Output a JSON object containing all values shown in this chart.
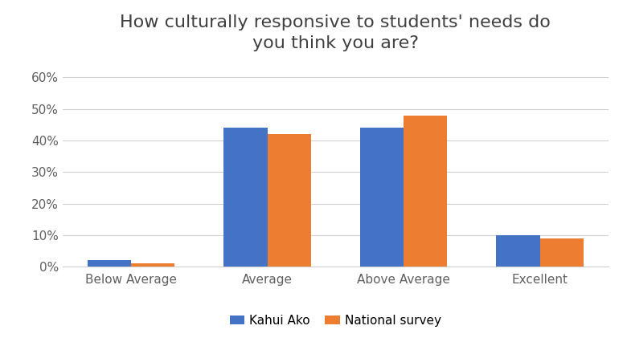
{
  "title": "How culturally responsive to students' needs do\nyou think you are?",
  "categories": [
    "Below Average",
    "Average",
    "Above Average",
    "Excellent"
  ],
  "series": [
    {
      "name": "Kahui Ako",
      "values": [
        0.02,
        0.44,
        0.44,
        0.1
      ],
      "color": "#4472C4"
    },
    {
      "name": "National survey",
      "values": [
        0.01,
        0.42,
        0.48,
        0.09
      ],
      "color": "#ED7D31"
    }
  ],
  "ylim": [
    0,
    0.65
  ],
  "yticks": [
    0.0,
    0.1,
    0.2,
    0.3,
    0.4,
    0.5,
    0.6
  ],
  "yticklabels": [
    "0%",
    "10%",
    "20%",
    "30%",
    "40%",
    "50%",
    "60%"
  ],
  "background_color": "#ffffff",
  "title_fontsize": 16,
  "tick_fontsize": 11,
  "legend_fontsize": 11,
  "bar_width": 0.32,
  "grid_color": "#d0d0d0",
  "title_color": "#404040",
  "tick_color": "#606060"
}
